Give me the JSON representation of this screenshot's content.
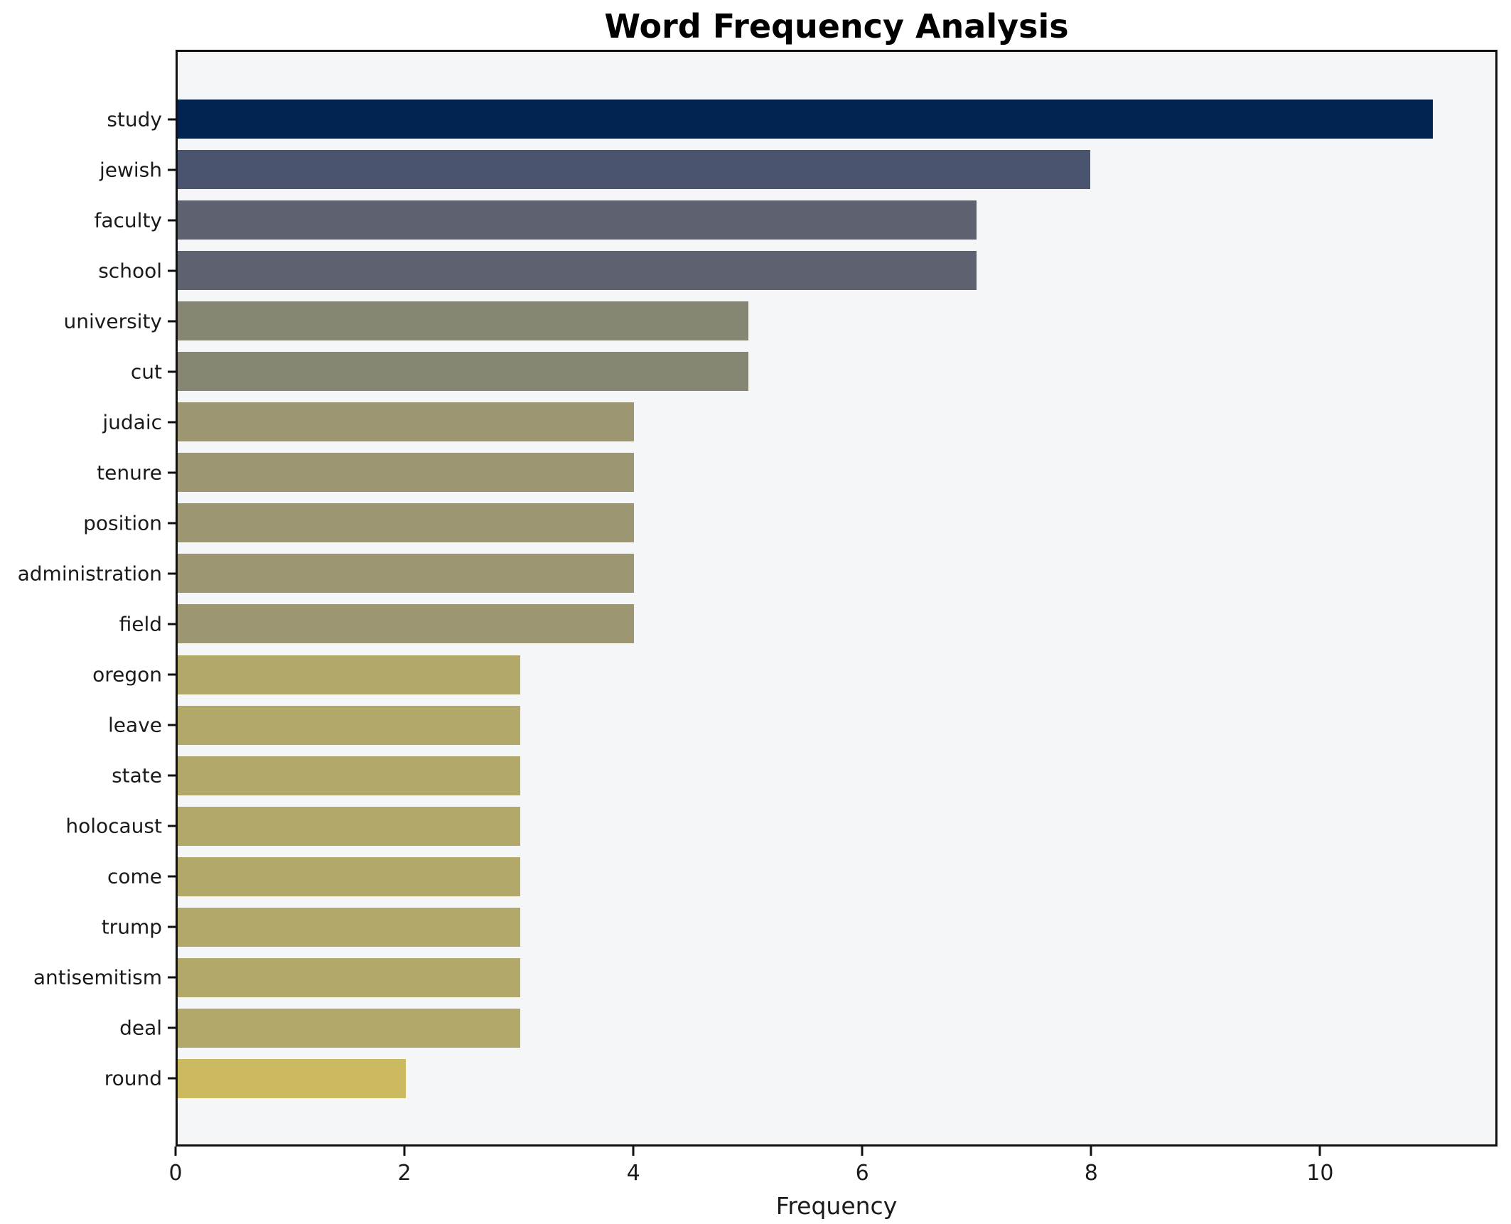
{
  "figure": {
    "title": "Word Frequency Analysis",
    "background_color": "#ffffff",
    "plot_background_color": "#f5f6f7",
    "spine_color": "#101010"
  },
  "chart_data": {
    "type": "bar",
    "orientation": "horizontal",
    "title": "Word Frequency Analysis",
    "xlabel": "Frequency",
    "ylabel": "",
    "categories": [
      "study",
      "jewish",
      "faculty",
      "school",
      "university",
      "cut",
      "judaic",
      "tenure",
      "position",
      "administration",
      "field",
      "oregon",
      "leave",
      "state",
      "holocaust",
      "come",
      "trump",
      "antisemitism",
      "deal",
      "round"
    ],
    "values": [
      11,
      8,
      7,
      7,
      5,
      5,
      4,
      4,
      4,
      4,
      4,
      3,
      3,
      3,
      3,
      3,
      3,
      3,
      3,
      2
    ],
    "bar_colors": [
      "#02234f",
      "#4a546e",
      "#5e6270",
      "#5e6270",
      "#878574",
      "#878574",
      "#9c9673",
      "#9c9673",
      "#9c9673",
      "#9c9673",
      "#9c9673",
      "#b2a86a",
      "#b2a86a",
      "#b2a86a",
      "#b2a86a",
      "#b2a86a",
      "#b2a86a",
      "#b2a86a",
      "#b2a86a",
      "#ccba60"
    ],
    "xticks": [
      0,
      2,
      4,
      6,
      8,
      10
    ],
    "xlim": [
      0,
      11.55
    ],
    "grid": false,
    "legend": null
  }
}
